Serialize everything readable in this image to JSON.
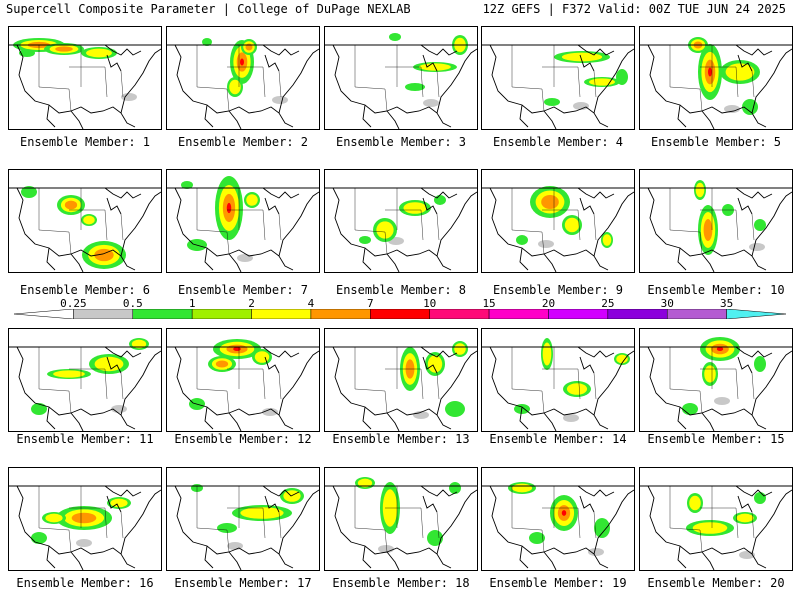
{
  "header": {
    "title": "Supercell Composite Parameter | College of DuPage NEXLAB",
    "run_info": "12Z GEFS | F372 Valid: 00Z TUE JUN 24 2025"
  },
  "panel_label_prefix": "Ensemble Member: ",
  "members": [
    {
      "n": "1",
      "blobs": [
        [
          30,
          18,
          26,
          7,
          2
        ],
        [
          55,
          22,
          20,
          6,
          2
        ],
        [
          90,
          26,
          18,
          6,
          1
        ],
        [
          18,
          26,
          8,
          4,
          0
        ]
      ]
    },
    {
      "n": "2",
      "blobs": [
        [
          75,
          35,
          12,
          22,
          3
        ],
        [
          82,
          20,
          8,
          8,
          2
        ],
        [
          68,
          60,
          8,
          10,
          1
        ],
        [
          40,
          15,
          5,
          4,
          0
        ]
      ]
    },
    {
      "n": "3",
      "blobs": [
        [
          110,
          40,
          22,
          5,
          1
        ],
        [
          135,
          18,
          8,
          10,
          1
        ],
        [
          90,
          60,
          10,
          4,
          0
        ],
        [
          70,
          10,
          6,
          4,
          0
        ]
      ]
    },
    {
      "n": "4",
      "blobs": [
        [
          100,
          30,
          28,
          6,
          1
        ],
        [
          120,
          55,
          18,
          5,
          1
        ],
        [
          70,
          75,
          8,
          4,
          0
        ],
        [
          140,
          50,
          6,
          8,
          0
        ]
      ]
    },
    {
      "n": "5",
      "blobs": [
        [
          70,
          45,
          12,
          28,
          3
        ],
        [
          58,
          18,
          10,
          8,
          2
        ],
        [
          100,
          45,
          20,
          12,
          1
        ],
        [
          110,
          80,
          8,
          8,
          0
        ]
      ]
    },
    {
      "n": "6",
      "blobs": [
        [
          62,
          35,
          14,
          10,
          2
        ],
        [
          95,
          85,
          22,
          14,
          2
        ],
        [
          80,
          50,
          8,
          6,
          1
        ],
        [
          20,
          22,
          8,
          6,
          0
        ]
      ]
    },
    {
      "n": "7",
      "blobs": [
        [
          62,
          38,
          14,
          32,
          3
        ],
        [
          85,
          30,
          8,
          8,
          1
        ],
        [
          30,
          75,
          10,
          6,
          0
        ],
        [
          20,
          15,
          6,
          4,
          0
        ]
      ]
    },
    {
      "n": "8",
      "blobs": [
        [
          90,
          38,
          16,
          8,
          1
        ],
        [
          60,
          60,
          12,
          12,
          1
        ],
        [
          115,
          30,
          6,
          5,
          0
        ],
        [
          40,
          70,
          6,
          4,
          0
        ]
      ]
    },
    {
      "n": "9",
      "blobs": [
        [
          68,
          32,
          20,
          16,
          2
        ],
        [
          90,
          55,
          10,
          10,
          1
        ],
        [
          125,
          70,
          6,
          8,
          1
        ],
        [
          40,
          70,
          6,
          5,
          0
        ]
      ]
    },
    {
      "n": "10",
      "blobs": [
        [
          68,
          60,
          10,
          25,
          2
        ],
        [
          60,
          20,
          6,
          10,
          1
        ],
        [
          88,
          40,
          6,
          6,
          0
        ],
        [
          120,
          55,
          6,
          6,
          0
        ]
      ]
    },
    {
      "n": "11",
      "blobs": [
        [
          100,
          35,
          20,
          10,
          1
        ],
        [
          60,
          45,
          22,
          5,
          1
        ],
        [
          130,
          15,
          10,
          6,
          1
        ],
        [
          30,
          80,
          8,
          6,
          0
        ]
      ]
    },
    {
      "n": "12",
      "blobs": [
        [
          70,
          20,
          24,
          10,
          3
        ],
        [
          55,
          35,
          14,
          8,
          2
        ],
        [
          95,
          28,
          10,
          8,
          1
        ],
        [
          30,
          75,
          8,
          6,
          0
        ]
      ]
    },
    {
      "n": "13",
      "blobs": [
        [
          85,
          40,
          10,
          22,
          2
        ],
        [
          110,
          35,
          10,
          12,
          1
        ],
        [
          135,
          20,
          8,
          8,
          1
        ],
        [
          130,
          80,
          10,
          8,
          0
        ]
      ]
    },
    {
      "n": "14",
      "blobs": [
        [
          65,
          25,
          6,
          16,
          1
        ],
        [
          95,
          60,
          14,
          8,
          1
        ],
        [
          140,
          30,
          8,
          6,
          1
        ],
        [
          40,
          80,
          8,
          5,
          0
        ]
      ]
    },
    {
      "n": "15",
      "blobs": [
        [
          80,
          20,
          20,
          12,
          3
        ],
        [
          70,
          45,
          8,
          12,
          1
        ],
        [
          50,
          80,
          8,
          6,
          0
        ],
        [
          120,
          35,
          6,
          8,
          0
        ]
      ]
    },
    {
      "n": "16",
      "blobs": [
        [
          75,
          50,
          28,
          12,
          2
        ],
        [
          45,
          50,
          12,
          6,
          1
        ],
        [
          110,
          35,
          12,
          6,
          1
        ],
        [
          30,
          70,
          8,
          6,
          0
        ]
      ]
    },
    {
      "n": "17",
      "blobs": [
        [
          95,
          45,
          30,
          8,
          1
        ],
        [
          125,
          28,
          12,
          8,
          1
        ],
        [
          60,
          60,
          10,
          5,
          0
        ],
        [
          30,
          20,
          6,
          4,
          0
        ]
      ]
    },
    {
      "n": "18",
      "blobs": [
        [
          65,
          40,
          10,
          26,
          1
        ],
        [
          40,
          15,
          10,
          6,
          1
        ],
        [
          110,
          70,
          8,
          8,
          0
        ],
        [
          130,
          20,
          6,
          6,
          0
        ]
      ]
    },
    {
      "n": "19",
      "blobs": [
        [
          82,
          45,
          14,
          18,
          3
        ],
        [
          40,
          20,
          14,
          6,
          1
        ],
        [
          120,
          60,
          8,
          10,
          0
        ],
        [
          55,
          70,
          8,
          6,
          0
        ]
      ]
    },
    {
      "n": "20",
      "blobs": [
        [
          70,
          60,
          24,
          8,
          1
        ],
        [
          105,
          50,
          12,
          6,
          1
        ],
        [
          55,
          35,
          8,
          10,
          1
        ],
        [
          120,
          30,
          6,
          6,
          0
        ]
      ]
    }
  ],
  "colorbar": {
    "ticks": [
      "0.25",
      "0.5",
      "1",
      "2",
      "4",
      "7",
      "10",
      "15",
      "20",
      "25",
      "30",
      "35"
    ],
    "colors": [
      "#ffffff",
      "#c8c8c8",
      "#32e632",
      "#a0f000",
      "#ffff00",
      "#ff9600",
      "#ff0000",
      "#ff0a78",
      "#ff00c8",
      "#d200ff",
      "#8c00dc",
      "#b45ad2",
      "#50f0f0"
    ]
  }
}
